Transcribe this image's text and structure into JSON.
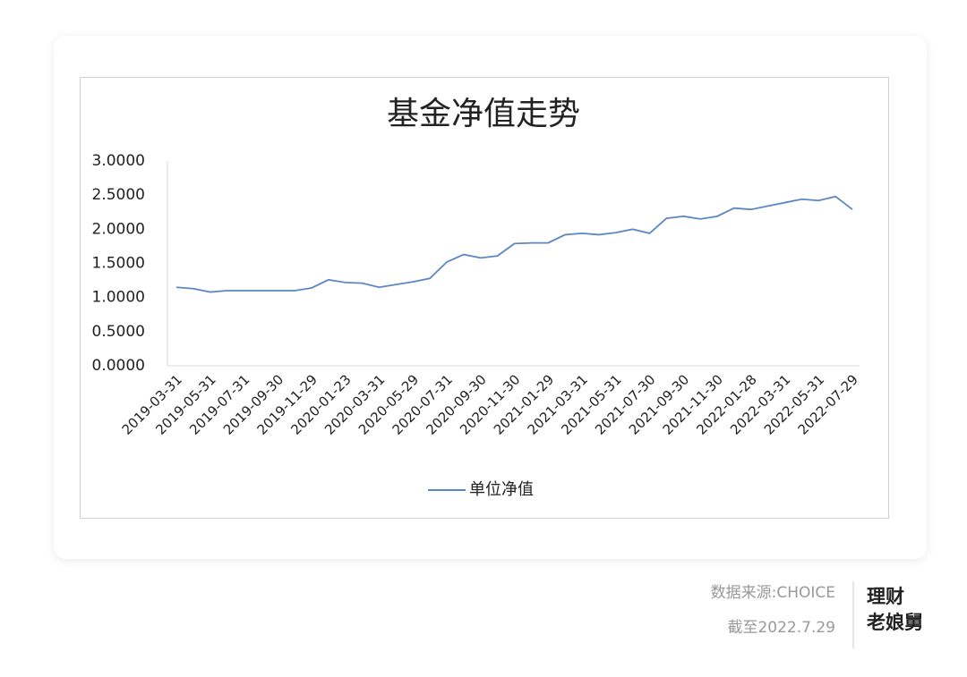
{
  "chart_data": {
    "type": "line",
    "title": "基金净值走势",
    "categories": [
      "2019-03-31",
      null,
      "2019-05-31",
      null,
      "2019-07-31",
      null,
      "2019-09-30",
      null,
      "2019-11-29",
      null,
      "2020-01-23",
      null,
      "2020-03-31",
      null,
      "2020-05-29",
      null,
      "2020-07-31",
      null,
      "2020-09-30",
      null,
      "2020-11-30",
      null,
      "2021-01-29",
      null,
      "2021-03-31",
      null,
      "2021-05-31",
      null,
      "2021-07-30",
      null,
      "2021-09-30",
      null,
      "2021-11-30",
      null,
      "2022-01-28",
      null,
      "2022-03-31",
      null,
      "2022-05-31",
      null,
      "2022-07-29"
    ],
    "series": [
      {
        "name": "单位净值",
        "color": "#5b87c5",
        "values": [
          1.15,
          1.13,
          1.08,
          1.1,
          1.1,
          1.1,
          1.1,
          1.1,
          1.14,
          1.26,
          1.22,
          1.21,
          1.15,
          1.19,
          1.23,
          1.28,
          1.52,
          1.63,
          1.58,
          1.61,
          1.79,
          1.8,
          1.8,
          1.92,
          1.94,
          1.92,
          1.95,
          2.0,
          1.94,
          2.16,
          2.19,
          2.15,
          2.19,
          2.31,
          2.29,
          2.34,
          2.39,
          2.44,
          2.42,
          2.48,
          2.29
        ]
      }
    ],
    "ylim": [
      0,
      3
    ],
    "yticks": [
      {
        "value": 0,
        "label": "0.0000"
      },
      {
        "value": 0.5,
        "label": "0.5000"
      },
      {
        "value": 1,
        "label": "1.0000"
      },
      {
        "value": 1.5,
        "label": "1.5000"
      },
      {
        "value": 2,
        "label": "2.0000"
      },
      {
        "value": 2.5,
        "label": "2.5000"
      },
      {
        "value": 3,
        "label": "3.0000"
      }
    ],
    "grid": false,
    "legend": "bottom"
  },
  "footer": {
    "source": "数据来源:CHOICE",
    "date": "截至2022.7.29",
    "brand": [
      "理财",
      "老娘舅"
    ]
  }
}
